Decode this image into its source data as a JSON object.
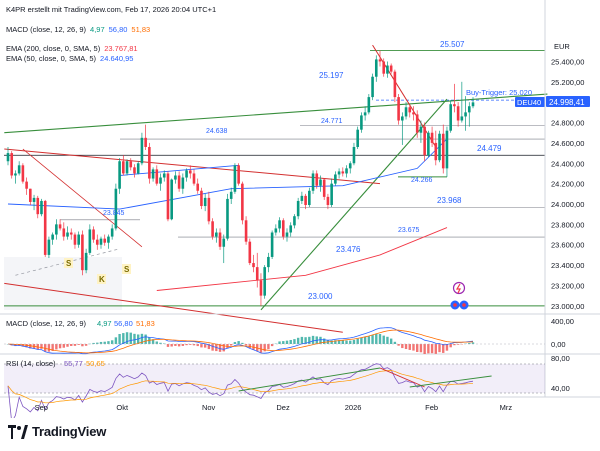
{
  "header": {
    "line1": "K4PR erstellt mit TradingView.com, Feb 17, 2026 20:04 UTC+1",
    "macd_top": {
      "label": "MACD (close, 12, 26, 9)",
      "v1": "4,97",
      "v2": "56,80",
      "v3": "51,83"
    },
    "ema200": {
      "label": "EMA (200, close, 0, SMA, 5)",
      "value": "23.767,81"
    },
    "ema50": {
      "label": "EMA (50, close, 0, SMA, 5)",
      "value": "24.640,95"
    }
  },
  "currency": "EUR",
  "instrument_tag": "DEU40",
  "last_price": "24.998,41",
  "annotations": {
    "buy_trigger": "Buy-Trigger: 25.020",
    "lvl_25507": "25.507",
    "lvl_25197": "25.197",
    "lvl_24771": "24.771",
    "lvl_24638": "24.638",
    "lvl_24479": "24.479",
    "lvl_24266": "24.266",
    "lvl_23968": "23.968",
    "lvl_23845": "23.845",
    "lvl_23675": "23.675",
    "lvl_23476": "23.476",
    "lvl_23000": "23.000",
    "pattern_s1": "S",
    "pattern_k": "K",
    "pattern_s2": "S"
  },
  "macd_pane": {
    "label": "MACD (close, 12, 26, 9)",
    "v1": "4,97",
    "v2": "56,80",
    "v3": "51,83",
    "axis": [
      "400,00",
      "0,00"
    ]
  },
  "rsi_pane": {
    "label": "RSI (14, close)",
    "v1": "55,77",
    "v2": "50,65",
    "axis": [
      "80,00",
      "40,00"
    ]
  },
  "branding": {
    "name": "TradingView"
  },
  "colors": {
    "up": "#089981",
    "down": "#f23645",
    "ema50": "#2962ff",
    "ema200": "#f23645",
    "trend_green": "#388e3c",
    "trend_red": "#d32f2f",
    "label_blue": "#2962ff"
  },
  "chart_data": {
    "type": "candlestick",
    "title": "DEU40",
    "y_axis_labels": [
      "25.400,00",
      "25.200,00",
      "25.000,00",
      "24.800,00",
      "24.600,00",
      "24.400,00",
      "24.200,00",
      "24.000,00",
      "23.800,00",
      "23.600,00",
      "23.400,00",
      "23.200,00",
      "23.000,00"
    ],
    "x_axis_labels": [
      "Sep",
      "Okt",
      "Nov",
      "Dez",
      "2026",
      "Feb",
      "Mrz"
    ],
    "ylim": [
      22900,
      25650
    ],
    "start_date": "2025-08-19",
    "candles": [
      [
        "2025-08-19",
        24420,
        24560,
        24380,
        24500
      ],
      [
        "2025-08-20",
        24500,
        24520,
        24250,
        24280
      ],
      [
        "2025-08-21",
        24280,
        24330,
        24200,
        24300
      ],
      [
        "2025-08-22",
        24300,
        24420,
        24280,
        24380
      ],
      [
        "2025-08-25",
        24380,
        24400,
        24200,
        24220
      ],
      [
        "2025-08-26",
        24220,
        24260,
        24090,
        24150
      ],
      [
        "2025-08-27",
        24150,
        24150,
        23990,
        24020
      ],
      [
        "2025-08-28",
        24020,
        24090,
        23940,
        24060
      ],
      [
        "2025-08-29",
        24060,
        24080,
        23860,
        23900
      ],
      [
        "2025-09-01",
        23900,
        24050,
        23880,
        24030
      ],
      [
        "2025-09-02",
        24030,
        24040,
        23480,
        23500
      ],
      [
        "2025-09-03",
        23500,
        23680,
        23470,
        23650
      ],
      [
        "2025-09-04",
        23650,
        23720,
        23600,
        23700
      ],
      [
        "2025-09-05",
        23700,
        23850,
        23650,
        23800
      ],
      [
        "2025-09-08",
        23800,
        23850,
        23740,
        23760
      ],
      [
        "2025-09-09",
        23760,
        23820,
        23640,
        23680
      ],
      [
        "2025-09-10",
        23680,
        23780,
        23650,
        23720
      ],
      [
        "2025-09-11",
        23720,
        23760,
        23650,
        23700
      ],
      [
        "2025-09-12",
        23700,
        23720,
        23560,
        23600
      ],
      [
        "2025-09-15",
        23600,
        23730,
        23570,
        23700
      ],
      [
        "2025-09-16",
        23700,
        23740,
        23300,
        23350
      ],
      [
        "2025-09-17",
        23350,
        23560,
        23320,
        23520
      ],
      [
        "2025-09-18",
        23520,
        23800,
        23500,
        23750
      ],
      [
        "2025-09-19",
        23750,
        23780,
        23620,
        23650
      ],
      [
        "2025-09-22",
        23650,
        23700,
        23550,
        23600
      ],
      [
        "2025-09-23",
        23600,
        23680,
        23560,
        23660
      ],
      [
        "2025-09-24",
        23660,
        23700,
        23590,
        23620
      ],
      [
        "2025-09-25",
        23620,
        23700,
        23560,
        23680
      ],
      [
        "2025-09-26",
        23680,
        23800,
        23650,
        23760
      ],
      [
        "2025-09-29",
        23760,
        24200,
        23740,
        24150
      ],
      [
        "2025-09-30",
        24150,
        24450,
        24100,
        24420
      ],
      [
        "2025-10-01",
        24420,
        24480,
        24280,
        24300
      ],
      [
        "2025-10-02",
        24300,
        24440,
        24280,
        24420
      ],
      [
        "2025-10-03",
        24420,
        24450,
        24330,
        24360
      ],
      [
        "2025-10-06",
        24360,
        24390,
        24260,
        24300
      ],
      [
        "2025-10-07",
        24300,
        24420,
        24290,
        24400
      ],
      [
        "2025-10-08",
        24400,
        24700,
        24380,
        24650
      ],
      [
        "2025-10-09",
        24650,
        24780,
        24530,
        24560
      ],
      [
        "2025-10-10",
        24560,
        24600,
        24200,
        24250
      ],
      [
        "2025-10-13",
        24250,
        24360,
        24220,
        24340
      ],
      [
        "2025-10-14",
        24340,
        24380,
        24180,
        24200
      ],
      [
        "2025-10-15",
        24200,
        24300,
        24130,
        24260
      ],
      [
        "2025-10-16",
        24260,
        24330,
        24220,
        24300
      ],
      [
        "2025-10-17",
        24300,
        24320,
        23830,
        23850
      ],
      [
        "2025-10-20",
        23850,
        24250,
        23840,
        24240
      ],
      [
        "2025-10-21",
        24240,
        24320,
        24200,
        24280
      ],
      [
        "2025-10-22",
        24280,
        24320,
        24120,
        24150
      ],
      [
        "2025-10-23",
        24150,
        24300,
        24100,
        24260
      ],
      [
        "2025-10-24",
        24260,
        24350,
        24220,
        24330
      ],
      [
        "2025-10-27",
        24330,
        24380,
        24250,
        24300
      ],
      [
        "2025-10-28",
        24300,
        24340,
        24180,
        24200
      ],
      [
        "2025-10-29",
        24200,
        24250,
        24100,
        24130
      ],
      [
        "2025-10-30",
        24130,
        24160,
        23950,
        23980
      ],
      [
        "2025-10-31",
        23980,
        24100,
        23930,
        24060
      ],
      [
        "2025-11-03",
        24060,
        24120,
        23800,
        23830
      ],
      [
        "2025-11-04",
        23830,
        23860,
        23650,
        23680
      ],
      [
        "2025-11-05",
        23680,
        23760,
        23620,
        23720
      ],
      [
        "2025-11-06",
        23720,
        23760,
        23550,
        23580
      ],
      [
        "2025-11-07",
        23580,
        23700,
        23420,
        23660
      ],
      [
        "2025-11-10",
        23660,
        24100,
        23640,
        24050
      ],
      [
        "2025-11-11",
        24050,
        24160,
        24000,
        24120
      ],
      [
        "2025-11-12",
        24120,
        24400,
        24100,
        24380
      ],
      [
        "2025-11-13",
        24380,
        24400,
        24180,
        24200
      ],
      [
        "2025-11-14",
        24200,
        24220,
        23800,
        23840
      ],
      [
        "2025-11-17",
        23840,
        23880,
        23600,
        23630
      ],
      [
        "2025-11-18",
        23630,
        23660,
        23400,
        23420
      ],
      [
        "2025-11-19",
        23420,
        23500,
        23330,
        23380
      ],
      [
        "2025-11-20",
        23380,
        23520,
        23180,
        23250
      ],
      [
        "2025-11-21",
        23250,
        23320,
        23000,
        23100
      ],
      [
        "2025-11-24",
        23100,
        23400,
        23070,
        23380
      ],
      [
        "2025-11-25",
        23380,
        23520,
        23330,
        23480
      ],
      [
        "2025-11-26",
        23480,
        23740,
        23460,
        23720
      ],
      [
        "2025-11-27",
        23720,
        23800,
        23690,
        23760
      ],
      [
        "2025-11-28",
        23760,
        23870,
        23720,
        23840
      ],
      [
        "2025-12-01",
        23840,
        23860,
        23650,
        23680
      ],
      [
        "2025-12-02",
        23680,
        23760,
        23630,
        23720
      ],
      [
        "2025-12-03",
        23720,
        23820,
        23680,
        23790
      ],
      [
        "2025-12-04",
        23790,
        23900,
        23760,
        23880
      ],
      [
        "2025-12-05",
        23880,
        24060,
        23850,
        24030
      ],
      [
        "2025-12-08",
        24030,
        24120,
        24000,
        24080
      ],
      [
        "2025-12-09",
        24080,
        24100,
        23950,
        23990
      ],
      [
        "2025-12-10",
        23990,
        24160,
        23970,
        24130
      ],
      [
        "2025-12-11",
        24130,
        24330,
        24100,
        24300
      ],
      [
        "2025-12-12",
        24300,
        24330,
        24150,
        24180
      ],
      [
        "2025-12-15",
        24180,
        24280,
        24120,
        24240
      ],
      [
        "2025-12-16",
        24240,
        24250,
        24040,
        24070
      ],
      [
        "2025-12-17",
        24070,
        24100,
        23950,
        23990
      ],
      [
        "2025-12-18",
        23990,
        24250,
        23970,
        24200
      ],
      [
        "2025-12-19",
        24200,
        24320,
        24180,
        24290
      ],
      [
        "2025-12-22",
        24290,
        24350,
        24250,
        24320
      ],
      [
        "2025-12-23",
        24320,
        24360,
        24270,
        24300
      ],
      [
        "2025-12-29",
        24300,
        24380,
        24260,
        24350
      ],
      [
        "2025-12-30",
        24350,
        24420,
        24300,
        24400
      ],
      [
        "2026-01-02",
        24400,
        24600,
        24380,
        24560
      ],
      [
        "2026-01-05",
        24560,
        24760,
        24540,
        24730
      ],
      [
        "2026-01-06",
        24730,
        24900,
        24700,
        24870
      ],
      [
        "2026-01-07",
        24870,
        24960,
        24820,
        24900
      ],
      [
        "2026-01-08",
        24900,
        25080,
        24880,
        25050
      ],
      [
        "2026-01-09",
        25050,
        25280,
        25020,
        25250
      ],
      [
        "2026-01-12",
        25250,
        25460,
        25200,
        25420
      ],
      [
        "2026-01-13",
        25420,
        25507,
        25350,
        25400
      ],
      [
        "2026-01-14",
        25400,
        25430,
        25250,
        25280
      ],
      [
        "2026-01-15",
        25280,
        25400,
        25240,
        25360
      ],
      [
        "2026-01-16",
        25360,
        25380,
        25280,
        25300
      ],
      [
        "2026-01-19",
        25300,
        25320,
        25000,
        25050
      ],
      [
        "2026-01-20",
        25050,
        25080,
        24780,
        24820
      ],
      [
        "2026-01-21",
        24820,
        24900,
        24580,
        24860
      ],
      [
        "2026-01-22",
        24860,
        25000,
        24830,
        24950
      ],
      [
        "2026-01-23",
        24950,
        24980,
        24850,
        24900
      ],
      [
        "2026-01-26",
        24900,
        24960,
        24820,
        24880
      ],
      [
        "2026-01-27",
        24880,
        24920,
        24650,
        24700
      ],
      [
        "2026-01-28",
        24700,
        24820,
        24600,
        24760
      ],
      [
        "2026-01-29",
        24760,
        24800,
        24420,
        24480
      ],
      [
        "2026-01-30",
        24480,
        24720,
        24460,
        24700
      ],
      [
        "2026-02-02",
        24700,
        24760,
        24560,
        24600
      ],
      [
        "2026-02-03",
        24600,
        24720,
        24380,
        24430
      ],
      [
        "2026-02-04",
        24430,
        24720,
        24410,
        24690
      ],
      [
        "2026-02-05",
        24690,
        24780,
        24300,
        24350
      ],
      [
        "2026-02-06",
        24350,
        24760,
        24266,
        24720
      ],
      [
        "2026-02-09",
        24720,
        25020,
        24700,
        24980
      ],
      [
        "2026-02-10",
        24980,
        25180,
        24900,
        24960
      ],
      [
        "2026-02-11",
        24960,
        25000,
        24760,
        24820
      ],
      [
        "2026-02-12",
        24820,
        25200,
        24800,
        24860
      ],
      [
        "2026-02-13",
        24860,
        25060,
        24720,
        24900
      ],
      [
        "2026-02-16",
        24900,
        25000,
        24760,
        24960
      ],
      [
        "2026-02-17",
        24960,
        25050,
        24940,
        24998
      ]
    ],
    "ema50": [
      [
        0,
        24000
      ],
      [
        30,
        23950
      ],
      [
        60,
        24150
      ],
      [
        90,
        24180
      ],
      [
        110,
        24350
      ],
      [
        118,
        24640
      ]
    ],
    "ema200": [
      [
        40,
        23150
      ],
      [
        80,
        23300
      ],
      [
        100,
        23500
      ],
      [
        118,
        23767.81
      ]
    ],
    "support_resistance_levels": [
      25507,
      25020,
      24771,
      24638,
      24479,
      24266,
      23968,
      23845,
      23675,
      23000
    ],
    "macd": {
      "macd": 56.8,
      "signal": 51.83,
      "hist": 4.97
    },
    "rsi": {
      "rsi": 55.77,
      "ma": 50.65
    }
  }
}
